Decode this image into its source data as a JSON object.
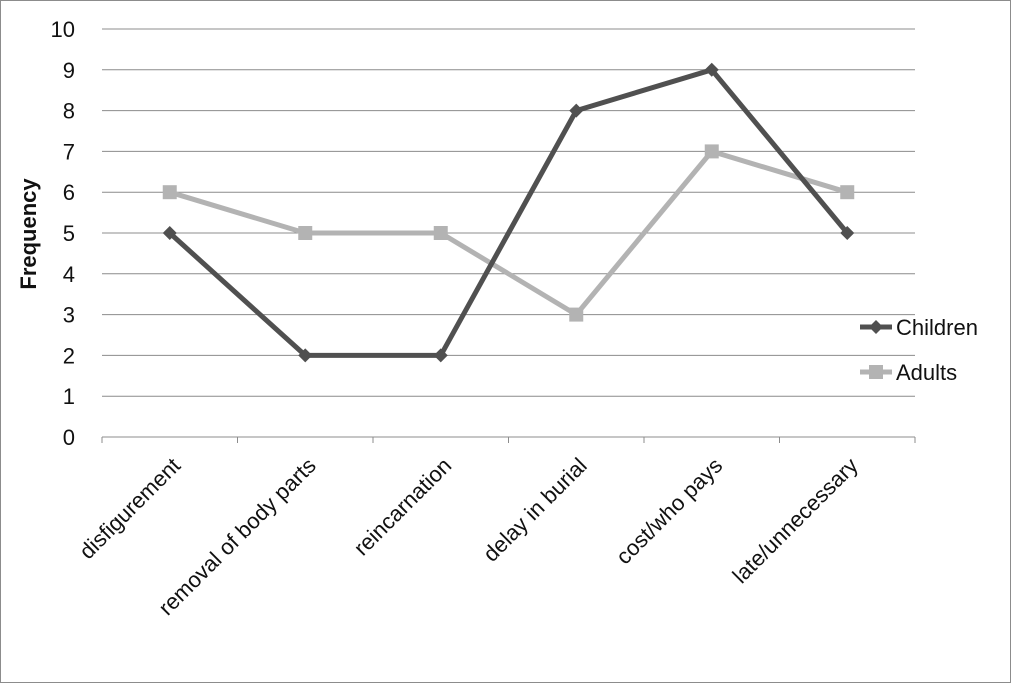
{
  "chart_data": {
    "type": "line",
    "categories": [
      "disfigurement",
      "removal of body parts",
      "reincarnation",
      "delay in burial",
      "cost/who pays",
      "late/unnecessary"
    ],
    "series": [
      {
        "name": "Children",
        "values": [
          5,
          2,
          2,
          8,
          9,
          5
        ],
        "color": "#505050",
        "marker": "diamond"
      },
      {
        "name": "Adults",
        "values": [
          6,
          5,
          5,
          3,
          7,
          6
        ],
        "color": "#b3b3b3",
        "marker": "square"
      }
    ],
    "ylabel": "Frequency",
    "xlabel": "",
    "ylim": [
      0,
      10
    ],
    "yticks": [
      "0",
      "1",
      "2",
      "3",
      "4",
      "5",
      "6",
      "7",
      "8",
      "9",
      "10"
    ],
    "grid": true,
    "legend_position": "right"
  }
}
